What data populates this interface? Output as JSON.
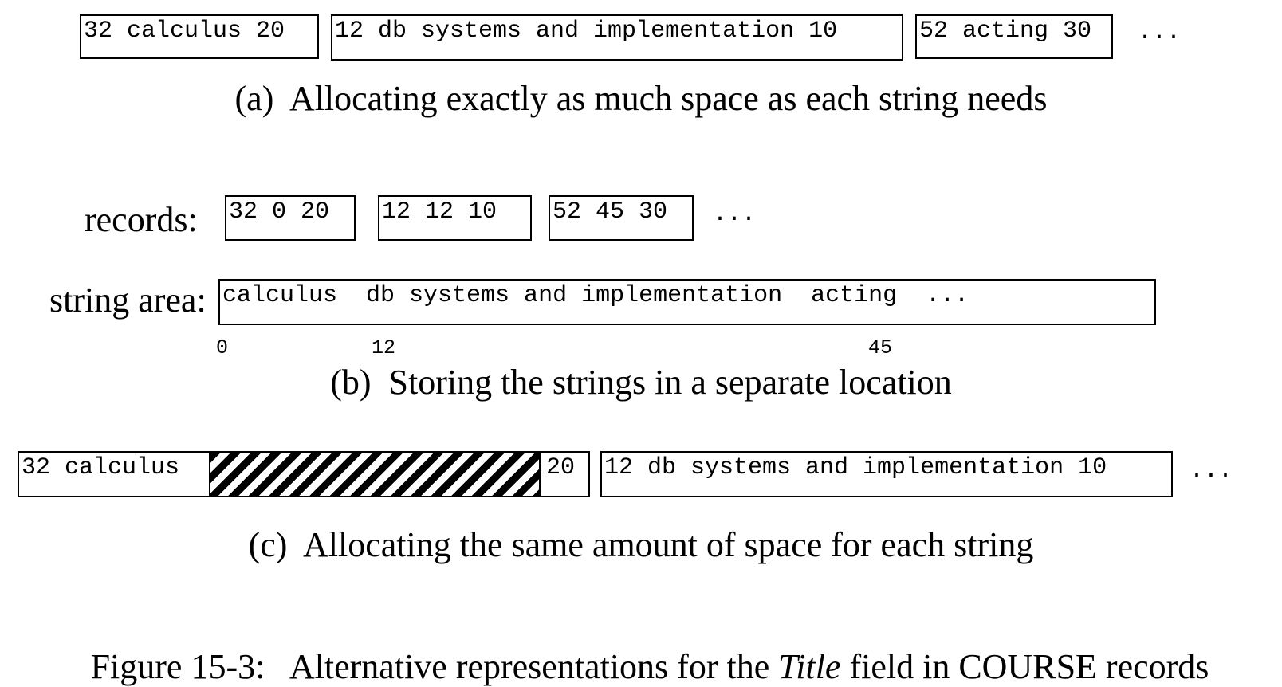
{
  "part_a": {
    "records": [
      {
        "text": "32 calculus 20"
      },
      {
        "text": "12 db systems and implementation 10"
      },
      {
        "text": "52 acting 30"
      }
    ],
    "ellipsis": "...",
    "caption": "(a)  Allocating exactly as much space as each string needs"
  },
  "part_b": {
    "records_label": "records:",
    "records": [
      {
        "text": "32 0 20"
      },
      {
        "text": "12 12 10"
      },
      {
        "text": "52 45 30"
      }
    ],
    "records_ellipsis": "...",
    "string_area_label": "string area:",
    "string_area_text": "calculus  db systems and implementation  acting  ...",
    "offsets": [
      "0",
      "12",
      "45"
    ],
    "caption": "(b)  Storing the strings in a separate location"
  },
  "part_c": {
    "record1_left": "32 calculus",
    "record1_right": "20",
    "record2": "12 db systems and implementation 10",
    "ellipsis": "...",
    "caption": "(c)  Allocating the same amount of space for each string"
  },
  "figure_caption": {
    "prefix": "Figure 15-3:   Alternative representations for the ",
    "italic": "Title",
    "suffix": " field in COURSE records"
  }
}
